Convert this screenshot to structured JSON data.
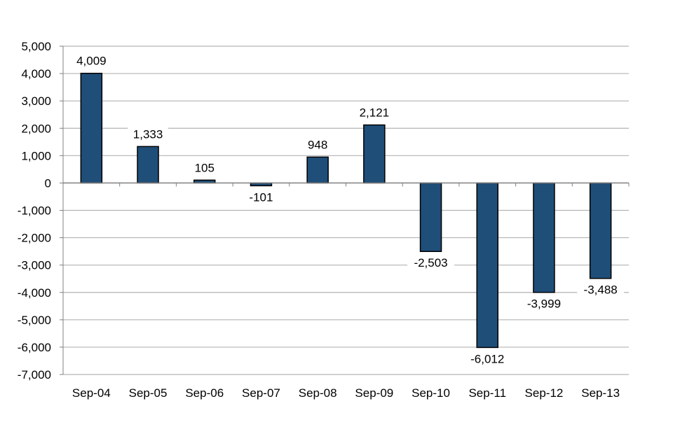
{
  "chart_data": {
    "type": "bar",
    "title": "",
    "xlabel": "",
    "ylabel": "",
    "categories": [
      "Sep-04",
      "Sep-05",
      "Sep-06",
      "Sep-07",
      "Sep-08",
      "Sep-09",
      "Sep-10",
      "Sep-11",
      "Sep-12",
      "Sep-13"
    ],
    "values": [
      4009,
      1333,
      105,
      -101,
      948,
      2121,
      -2503,
      -6012,
      -3999,
      -3488
    ],
    "value_labels": [
      "4,009",
      "1,333",
      "105",
      "-101",
      "948",
      "2,121",
      "-2,503",
      "-6,012",
      "-3,999",
      "-3,488"
    ],
    "ylim": [
      -7000,
      5000
    ],
    "yticks": [
      5000,
      4000,
      3000,
      2000,
      1000,
      0,
      -1000,
      -2000,
      -3000,
      -4000,
      -5000,
      -6000,
      -7000
    ],
    "ytick_labels": [
      "5,000",
      "4,000",
      "3,000",
      "2,000",
      "1,000",
      "0",
      "-1,000",
      "-2,000",
      "-3,000",
      "-4,000",
      "-5,000",
      "-6,000",
      "-7,000"
    ],
    "grid": true,
    "legend": "none",
    "colors": {
      "bar_fill": "#1f4e79",
      "bar_stroke": "#000000",
      "grid": "#b3b3b3",
      "axis": "#808080"
    }
  }
}
